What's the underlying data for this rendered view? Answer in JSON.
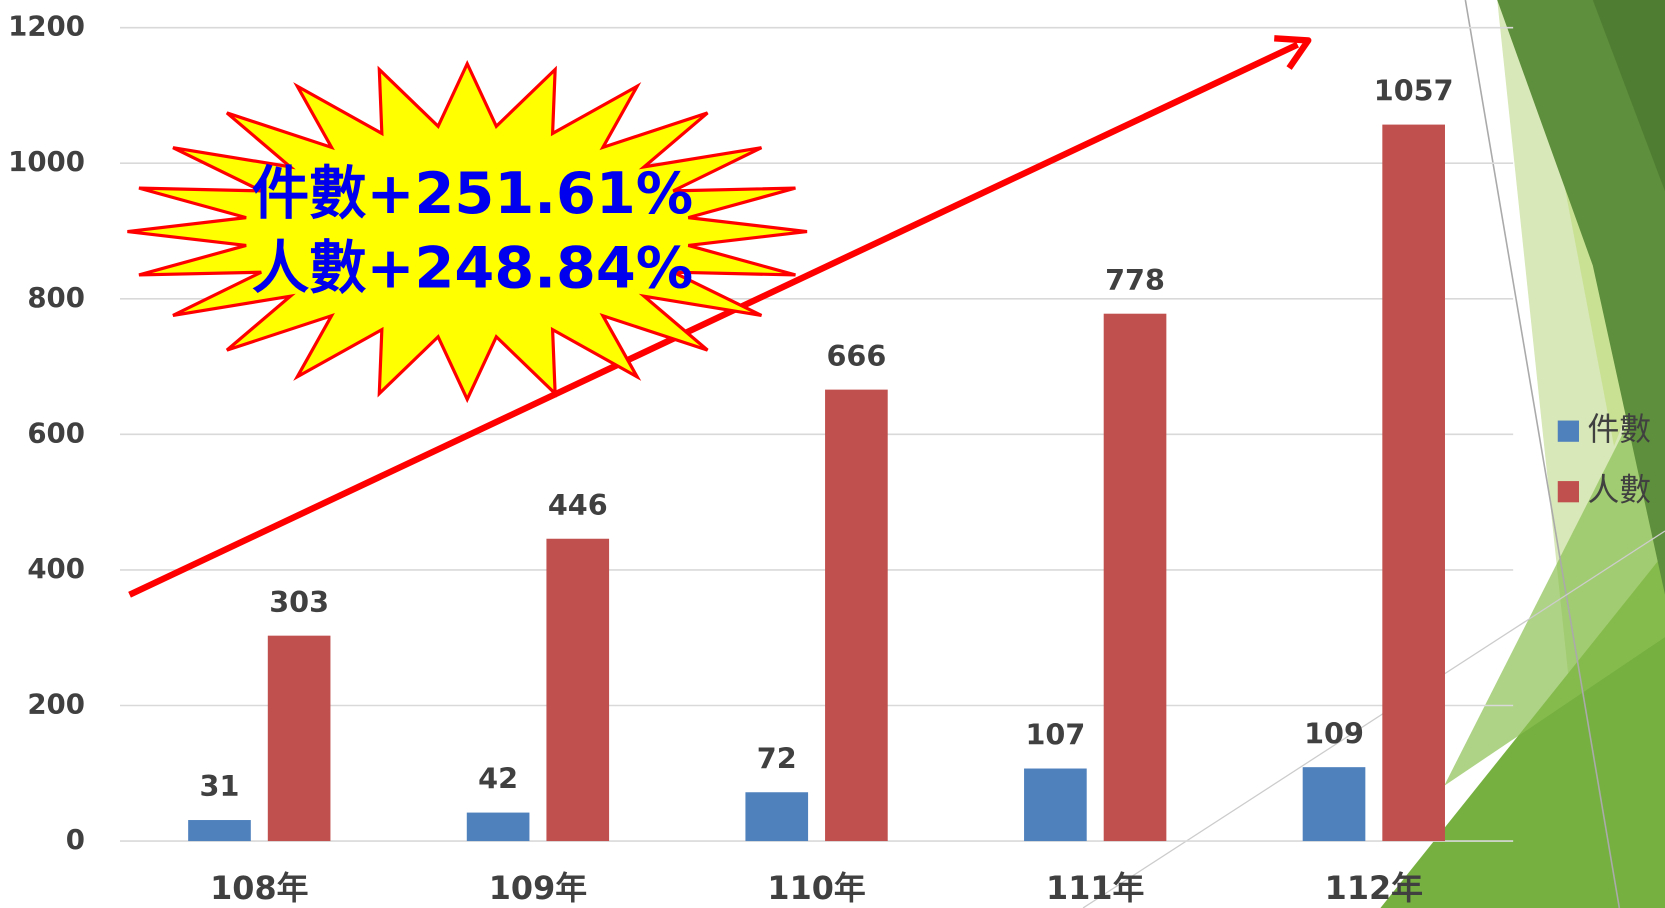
{
  "chart_data": {
    "type": "bar",
    "categories": [
      "108年",
      "109年",
      "110年",
      "111年",
      "112年"
    ],
    "series": [
      {
        "name": "件數",
        "color": "#4f81bd",
        "values": [
          31,
          42,
          72,
          107,
          109
        ]
      },
      {
        "name": "人數",
        "color": "#c0504d",
        "values": [
          303,
          446,
          666,
          778,
          1057
        ]
      }
    ],
    "ylim": [
      0,
      1200
    ],
    "yticks": [
      0,
      200,
      400,
      600,
      800,
      1000,
      1200
    ],
    "grid": true,
    "annotations": [
      "件數+251.61%",
      "人數+248.84%"
    ]
  }
}
